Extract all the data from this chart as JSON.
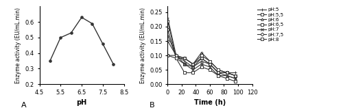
{
  "chart_a": {
    "x": [
      5.0,
      5.5,
      6.0,
      6.5,
      7.0,
      7.5,
      8.0
    ],
    "y": [
      0.35,
      0.5,
      0.53,
      0.63,
      0.59,
      0.46,
      0.33
    ],
    "xlabel": "pH",
    "ylabel": "Enzyme activity (EU/mL.min)",
    "xlim": [
      4.5,
      8.5
    ],
    "ylim": [
      0.2,
      0.7
    ],
    "yticks": [
      0.2,
      0.3,
      0.4,
      0.5,
      0.6
    ],
    "xticks": [
      4.5,
      5.5,
      6.5,
      7.5,
      8.5
    ],
    "label": "A",
    "color": "#333333"
  },
  "chart_b": {
    "time": [
      0,
      12,
      24,
      36,
      48,
      60,
      72,
      84,
      96
    ],
    "series": {
      "pH:5": [
        0.23,
        0.1,
        0.09,
        0.07,
        0.11,
        0.08,
        0.05,
        0.04,
        0.04
      ],
      "pH:5,5": [
        0.19,
        0.09,
        0.07,
        0.06,
        0.09,
        0.07,
        0.04,
        0.04,
        0.03
      ],
      "pH:6": [
        0.17,
        0.1,
        0.08,
        0.06,
        0.08,
        0.07,
        0.04,
        0.03,
        0.02
      ],
      "pH:6,5": [
        0.22,
        0.09,
        0.09,
        0.07,
        0.1,
        0.08,
        0.05,
        0.04,
        0.03
      ],
      "pH:7": [
        0.1,
        0.1,
        0.07,
        0.05,
        0.07,
        0.06,
        0.03,
        0.03,
        0.02
      ],
      "pH:7,5": [
        0.15,
        0.1,
        0.09,
        0.07,
        0.09,
        0.07,
        0.04,
        0.04,
        0.03
      ],
      "pH:8": [
        0.1,
        0.09,
        0.04,
        0.04,
        0.06,
        0.05,
        0.03,
        0.02,
        0.01
      ]
    },
    "marker_styles": [
      "+",
      "s",
      "^",
      "s",
      "x",
      "s",
      "s"
    ],
    "xlabel": "Time (h)",
    "ylabel": "Enzyme activity (EU/mL.min)",
    "xlim": [
      0,
      120
    ],
    "ylim": [
      0,
      0.27
    ],
    "yticks": [
      0,
      0.05,
      0.1,
      0.15,
      0.2,
      0.25
    ],
    "xticks": [
      0,
      20,
      40,
      60,
      80,
      100,
      120
    ],
    "label": "B",
    "color": "#333333"
  }
}
